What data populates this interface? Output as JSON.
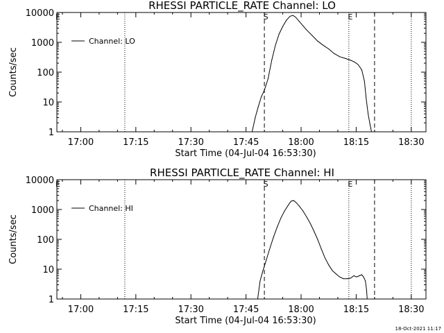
{
  "chart_data": [
    {
      "type": "line",
      "title": "RHESSI PARTICLE_RATE Channel: LO",
      "xlabel": "Start Time (04-Jul-04 16:53:30)",
      "ylabel": "Counts/sec",
      "y_scale": "log",
      "ylim": [
        1,
        10000
      ],
      "xlim": [
        "16:53:30",
        "18:34:00"
      ],
      "x_ticks": [
        "17:00",
        "17:15",
        "17:30",
        "17:45",
        "18:00",
        "18:15",
        "18:30"
      ],
      "y_ticks": [
        "1",
        "10",
        "100",
        "1000",
        "10000"
      ],
      "legend": {
        "position": "top-left",
        "entries": [
          "Channel: LO"
        ]
      },
      "markers": {
        "S": "17:50",
        "E": "18:13"
      },
      "dotted_lines": [
        "17:12",
        "18:13",
        "18:30"
      ],
      "dashed_lines": [
        "17:50",
        "18:20"
      ],
      "series": [
        {
          "name": "Channel: LO",
          "x": [
            "17:46:40",
            "17:47:30",
            "17:48:20",
            "17:49:10",
            "17:50:00",
            "17:51:00",
            "17:52:00",
            "17:53:00",
            "17:54:00",
            "17:55:00",
            "17:56:00",
            "17:57:00",
            "17:57:45",
            "17:58:30",
            "17:59:30",
            "18:00:30",
            "18:01:30",
            "18:03:00",
            "18:04:30",
            "18:06:00",
            "18:07:30",
            "18:09:00",
            "18:10:30",
            "18:12:00",
            "18:13:30",
            "18:14:30",
            "18:15:30",
            "18:16:30",
            "18:17:15",
            "18:17:45",
            "18:18:15",
            "18:18:45",
            "18:19:10"
          ],
          "values": [
            1,
            3,
            7,
            15,
            25,
            60,
            250,
            800,
            1900,
            3400,
            5500,
            7500,
            8000,
            7000,
            5000,
            3600,
            2600,
            1700,
            1100,
            800,
            600,
            420,
            330,
            290,
            250,
            220,
            180,
            120,
            50,
            12,
            4,
            1.8,
            1
          ]
        }
      ]
    },
    {
      "type": "line",
      "title": "RHESSI PARTICLE_RATE Channel: HI",
      "xlabel": "Start Time (04-Jul-04 16:53:30)",
      "ylabel": "Counts/sec",
      "y_scale": "log",
      "ylim": [
        1,
        10000
      ],
      "xlim": [
        "16:53:30",
        "18:34:00"
      ],
      "x_ticks": [
        "17:00",
        "17:15",
        "17:30",
        "17:45",
        "18:00",
        "18:15",
        "18:30"
      ],
      "y_ticks": [
        "1",
        "10",
        "100",
        "1000",
        "10000"
      ],
      "legend": {
        "position": "top-left",
        "entries": [
          "Channel: HI"
        ]
      },
      "markers": {
        "S": "17:50",
        "E": "18:13"
      },
      "dotted_lines": [
        "17:12",
        "18:13",
        "18:30"
      ],
      "dashed_lines": [
        "17:50",
        "18:20"
      ],
      "series": [
        {
          "name": "Channel: HI",
          "x": [
            "17:48:10",
            "17:48:50",
            "17:49:30",
            "17:50:30",
            "17:51:30",
            "17:52:30",
            "17:53:30",
            "17:54:30",
            "17:55:30",
            "17:56:30",
            "17:57:15",
            "17:58:00",
            "17:58:40",
            "17:59:30",
            "18:00:30",
            "18:01:30",
            "18:02:30",
            "18:03:30",
            "18:04:30",
            "18:05:30",
            "18:06:30",
            "18:07:30",
            "18:08:30",
            "18:09:30",
            "18:10:30",
            "18:11:30",
            "18:12:30",
            "18:13:30",
            "18:14:20",
            "18:15:10",
            "18:15:50",
            "18:16:30",
            "18:17:00",
            "18:17:30",
            "18:17:50",
            "18:18:00"
          ],
          "values": [
            1,
            4,
            8,
            20,
            50,
            120,
            260,
            520,
            900,
            1400,
            1900,
            2000,
            1700,
            1300,
            900,
            560,
            340,
            190,
            100,
            48,
            24,
            14,
            9,
            7,
            5.5,
            4.8,
            4.8,
            5,
            6,
            5.5,
            6,
            6.5,
            5.5,
            4,
            2,
            1
          ]
        }
      ]
    }
  ],
  "timestamp": "18-Oct-2021 11:17"
}
